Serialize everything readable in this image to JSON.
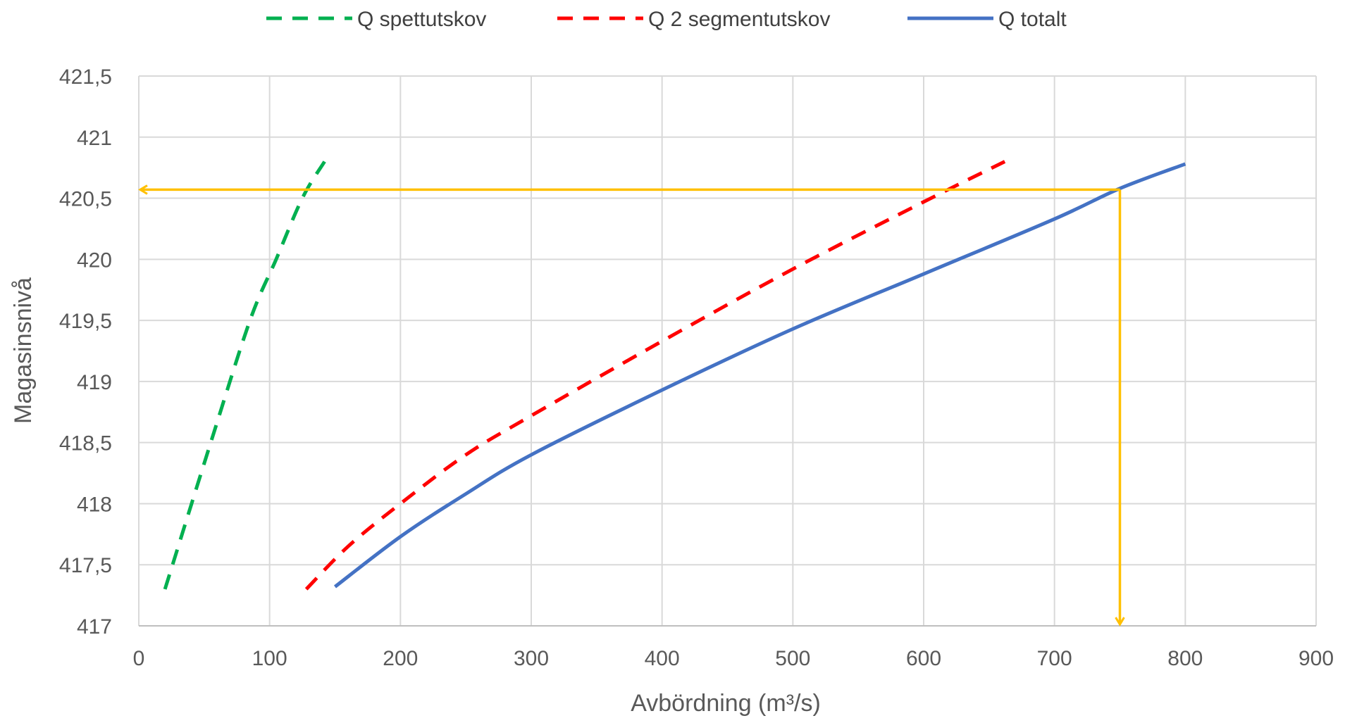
{
  "chart_data": {
    "type": "line",
    "title": "",
    "xlabel": "Avbördning (m³/s)",
    "ylabel": "Magasinsnivå",
    "xlim": [
      0,
      900
    ],
    "ylim": [
      417,
      421.5
    ],
    "x_ticks": [
      "0",
      "100",
      "200",
      "300",
      "400",
      "500",
      "600",
      "700",
      "800",
      "900"
    ],
    "y_ticks": [
      "417",
      "417,5",
      "418",
      "418,5",
      "419",
      "419,5",
      "420",
      "420,5",
      "421",
      "421,5"
    ],
    "grid": true,
    "legend_position": "top",
    "series": [
      {
        "name": "Q spettutskov",
        "color": "#00B050",
        "dash": "dashed",
        "x": [
          20,
          55,
          85,
          105,
          125,
          142
        ],
        "y": [
          417.3,
          418.5,
          419.5,
          420.0,
          420.5,
          420.8
        ]
      },
      {
        "name": "Q 2 segmentutskov",
        "color": "#FF0000",
        "dash": "dashed",
        "x": [
          128,
          160,
          200,
          250,
          300,
          400,
          500,
          600,
          662
        ],
        "y": [
          417.3,
          417.65,
          418.0,
          418.4,
          418.72,
          419.33,
          419.92,
          420.47,
          420.8
        ]
      },
      {
        "name": "Q totalt",
        "color": "#4472C4",
        "dash": "solid",
        "x": [
          150,
          200,
          250,
          300,
          400,
          500,
          600,
          700,
          750,
          800
        ],
        "y": [
          417.32,
          417.73,
          418.08,
          418.4,
          418.93,
          419.43,
          419.88,
          420.33,
          420.58,
          420.78
        ]
      }
    ],
    "annotations": [
      {
        "type": "reading-arrows",
        "color": "#FFC000",
        "x": 750,
        "y": 420.57
      }
    ]
  }
}
